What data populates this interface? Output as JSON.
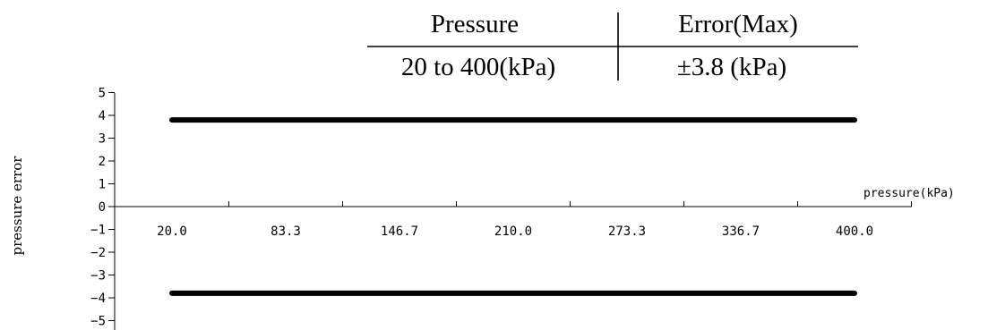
{
  "spec_table": {
    "headers": [
      "Pressure",
      "Error(Max)"
    ],
    "row": [
      "20 to 400(kPa)",
      "±3.8 (kPa)"
    ]
  },
  "chart_data": {
    "type": "line",
    "title": "",
    "xlabel": "pressure(kPa)",
    "ylabel": "pressure error",
    "x_ticks": [
      "20.0",
      "83.3",
      "146.7",
      "210.0",
      "273.3",
      "336.7",
      "400.0"
    ],
    "y_ticks": [
      "5",
      "4",
      "3",
      "2",
      "1",
      "0",
      "-1",
      "-2",
      "-3",
      "-4",
      "-5"
    ],
    "xlim": [
      20,
      400
    ],
    "ylim": [
      -5,
      5
    ],
    "grid": false,
    "series": [
      {
        "values": [
          [
            20,
            3.8
          ],
          [
            400,
            3.8
          ]
        ],
        "color": "#000000"
      },
      {
        "values": [
          [
            20,
            -3.8
          ],
          [
            400,
            -3.8
          ]
        ],
        "color": "#000000"
      }
    ]
  }
}
